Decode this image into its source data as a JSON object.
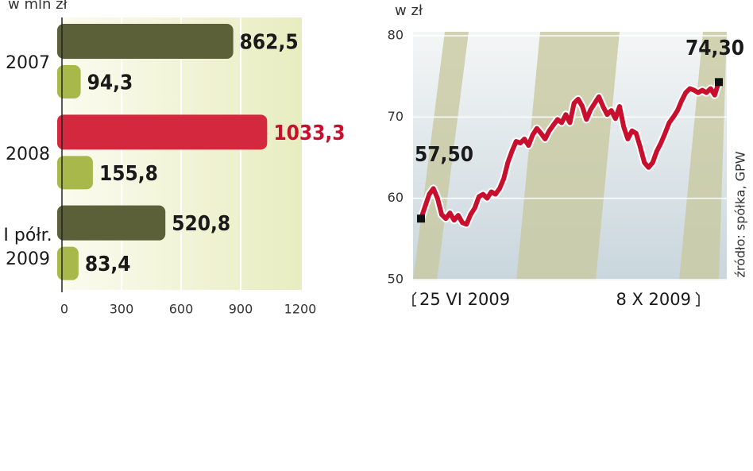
{
  "chart_data": [
    {
      "type": "hbar",
      "subtitle": "w mln zł",
      "categories": [
        "2007",
        "2008",
        "I półr. 2009"
      ],
      "series": [
        {
          "colors": [
            "#5b6038",
            "#d4283f",
            "#5b6038"
          ],
          "value_label_colors": [
            "#1a1a1a",
            "#c8102e",
            "#1a1a1a"
          ],
          "values": [
            862.5,
            1033.3,
            520.8
          ],
          "value_labels": [
            "862,5",
            "1033,3",
            "520,8"
          ]
        },
        {
          "colors": [
            "#a9b84a",
            "#a9b84a",
            "#a9b84a"
          ],
          "value_label_colors": [
            "#1a1a1a",
            "#1a1a1a",
            "#1a1a1a"
          ],
          "values": [
            94.3,
            155.8,
            83.4
          ],
          "value_labels": [
            "94,3",
            "155,8",
            "83,4"
          ]
        }
      ],
      "xlim": [
        0,
        1200
      ],
      "xticks": [
        0,
        300,
        600,
        900,
        1200
      ],
      "grid": true
    },
    {
      "type": "line",
      "subtitle": "w zł",
      "source": "źródło: spółka, GPW",
      "color": "#c8102e",
      "x": [
        "25 VI 2009",
        null,
        null,
        null,
        null,
        null,
        null,
        null,
        null,
        null,
        null,
        null,
        null,
        null,
        null,
        null,
        null,
        null,
        null,
        null,
        null,
        null,
        null,
        null,
        null,
        null,
        null,
        null,
        null,
        null,
        null,
        null,
        null,
        null,
        null,
        null,
        null,
        null,
        null,
        null,
        null,
        null,
        null,
        null,
        null,
        null,
        null,
        null,
        null,
        null,
        null,
        null,
        null,
        null,
        null,
        null,
        null,
        null,
        null,
        null,
        null,
        null,
        null,
        null,
        null,
        null,
        null,
        null,
        null,
        null,
        null,
        null,
        "8 X 2009"
      ],
      "values": [
        57.5,
        59,
        60.5,
        61.2,
        60,
        58,
        57.5,
        58.2,
        57.3,
        57.9,
        57,
        56.8,
        58,
        58.8,
        60.2,
        60.5,
        60,
        60.8,
        60.5,
        61.2,
        62.4,
        64.4,
        65.8,
        67,
        66.8,
        67.3,
        66.5,
        67.8,
        68.6,
        68,
        67.3,
        68.3,
        69,
        69.7,
        69.3,
        70.3,
        69.3,
        71.7,
        72.2,
        71.3,
        69.7,
        70.9,
        71.7,
        72.5,
        71.3,
        70.3,
        70.8,
        69.8,
        71.3,
        68.8,
        67.3,
        68.3,
        68,
        66.3,
        64.4,
        63.8,
        64.4,
        65.8,
        66.8,
        68,
        69.3,
        70,
        70.8,
        72,
        73,
        73.5,
        73.3,
        73,
        73.3,
        73,
        73.5,
        72.7,
        74.3
      ],
      "value_labels_at": {
        "first": "57,50",
        "last": "74,30"
      },
      "ylim": [
        50,
        80
      ],
      "yticks": [
        50,
        60,
        70,
        80
      ],
      "grid": true
    }
  ]
}
